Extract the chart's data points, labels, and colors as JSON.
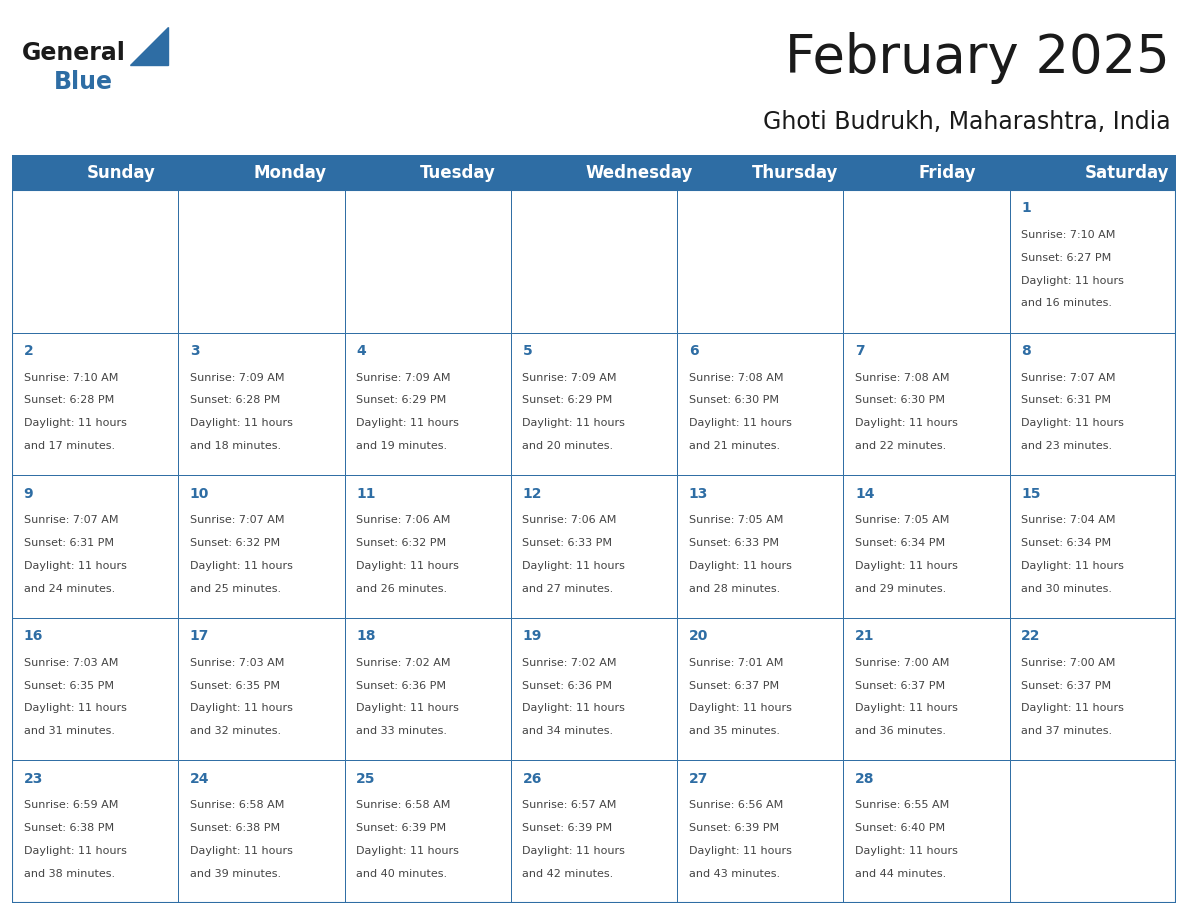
{
  "title": "February 2025",
  "subtitle": "Ghoti Budrukh, Maharashtra, India",
  "days_of_week": [
    "Sunday",
    "Monday",
    "Tuesday",
    "Wednesday",
    "Thursday",
    "Friday",
    "Saturday"
  ],
  "header_bg": "#2E6DA4",
  "header_text": "#FFFFFF",
  "cell_bg_white": "#FFFFFF",
  "cell_bg_gray": "#F2F2F2",
  "cell_border": "#2E6DA4",
  "day_number_color": "#2E6DA4",
  "info_text_color": "#444444",
  "title_color": "#1a1a1a",
  "subtitle_color": "#1a1a1a",
  "logo_general_color": "#1a1a1a",
  "logo_blue_color": "#2E6DA4",
  "calendar_data": [
    [
      null,
      null,
      null,
      null,
      null,
      null,
      {
        "day": 1,
        "sunrise": "7:10 AM",
        "sunset": "6:27 PM",
        "daylight": "11 hours and 16 minutes"
      }
    ],
    [
      {
        "day": 2,
        "sunrise": "7:10 AM",
        "sunset": "6:28 PM",
        "daylight": "11 hours and 17 minutes"
      },
      {
        "day": 3,
        "sunrise": "7:09 AM",
        "sunset": "6:28 PM",
        "daylight": "11 hours and 18 minutes"
      },
      {
        "day": 4,
        "sunrise": "7:09 AM",
        "sunset": "6:29 PM",
        "daylight": "11 hours and 19 minutes"
      },
      {
        "day": 5,
        "sunrise": "7:09 AM",
        "sunset": "6:29 PM",
        "daylight": "11 hours and 20 minutes"
      },
      {
        "day": 6,
        "sunrise": "7:08 AM",
        "sunset": "6:30 PM",
        "daylight": "11 hours and 21 minutes"
      },
      {
        "day": 7,
        "sunrise": "7:08 AM",
        "sunset": "6:30 PM",
        "daylight": "11 hours and 22 minutes"
      },
      {
        "day": 8,
        "sunrise": "7:07 AM",
        "sunset": "6:31 PM",
        "daylight": "11 hours and 23 minutes"
      }
    ],
    [
      {
        "day": 9,
        "sunrise": "7:07 AM",
        "sunset": "6:31 PM",
        "daylight": "11 hours and 24 minutes"
      },
      {
        "day": 10,
        "sunrise": "7:07 AM",
        "sunset": "6:32 PM",
        "daylight": "11 hours and 25 minutes"
      },
      {
        "day": 11,
        "sunrise": "7:06 AM",
        "sunset": "6:32 PM",
        "daylight": "11 hours and 26 minutes"
      },
      {
        "day": 12,
        "sunrise": "7:06 AM",
        "sunset": "6:33 PM",
        "daylight": "11 hours and 27 minutes"
      },
      {
        "day": 13,
        "sunrise": "7:05 AM",
        "sunset": "6:33 PM",
        "daylight": "11 hours and 28 minutes"
      },
      {
        "day": 14,
        "sunrise": "7:05 AM",
        "sunset": "6:34 PM",
        "daylight": "11 hours and 29 minutes"
      },
      {
        "day": 15,
        "sunrise": "7:04 AM",
        "sunset": "6:34 PM",
        "daylight": "11 hours and 30 minutes"
      }
    ],
    [
      {
        "day": 16,
        "sunrise": "7:03 AM",
        "sunset": "6:35 PM",
        "daylight": "11 hours and 31 minutes"
      },
      {
        "day": 17,
        "sunrise": "7:03 AM",
        "sunset": "6:35 PM",
        "daylight": "11 hours and 32 minutes"
      },
      {
        "day": 18,
        "sunrise": "7:02 AM",
        "sunset": "6:36 PM",
        "daylight": "11 hours and 33 minutes"
      },
      {
        "day": 19,
        "sunrise": "7:02 AM",
        "sunset": "6:36 PM",
        "daylight": "11 hours and 34 minutes"
      },
      {
        "day": 20,
        "sunrise": "7:01 AM",
        "sunset": "6:37 PM",
        "daylight": "11 hours and 35 minutes"
      },
      {
        "day": 21,
        "sunrise": "7:00 AM",
        "sunset": "6:37 PM",
        "daylight": "11 hours and 36 minutes"
      },
      {
        "day": 22,
        "sunrise": "7:00 AM",
        "sunset": "6:37 PM",
        "daylight": "11 hours and 37 minutes"
      }
    ],
    [
      {
        "day": 23,
        "sunrise": "6:59 AM",
        "sunset": "6:38 PM",
        "daylight": "11 hours and 38 minutes"
      },
      {
        "day": 24,
        "sunrise": "6:58 AM",
        "sunset": "6:38 PM",
        "daylight": "11 hours and 39 minutes"
      },
      {
        "day": 25,
        "sunrise": "6:58 AM",
        "sunset": "6:39 PM",
        "daylight": "11 hours and 40 minutes"
      },
      {
        "day": 26,
        "sunrise": "6:57 AM",
        "sunset": "6:39 PM",
        "daylight": "11 hours and 42 minutes"
      },
      {
        "day": 27,
        "sunrise": "6:56 AM",
        "sunset": "6:39 PM",
        "daylight": "11 hours and 43 minutes"
      },
      {
        "day": 28,
        "sunrise": "6:55 AM",
        "sunset": "6:40 PM",
        "daylight": "11 hours and 44 minutes"
      },
      null
    ]
  ],
  "figsize": [
    11.88,
    9.18
  ],
  "dpi": 100
}
